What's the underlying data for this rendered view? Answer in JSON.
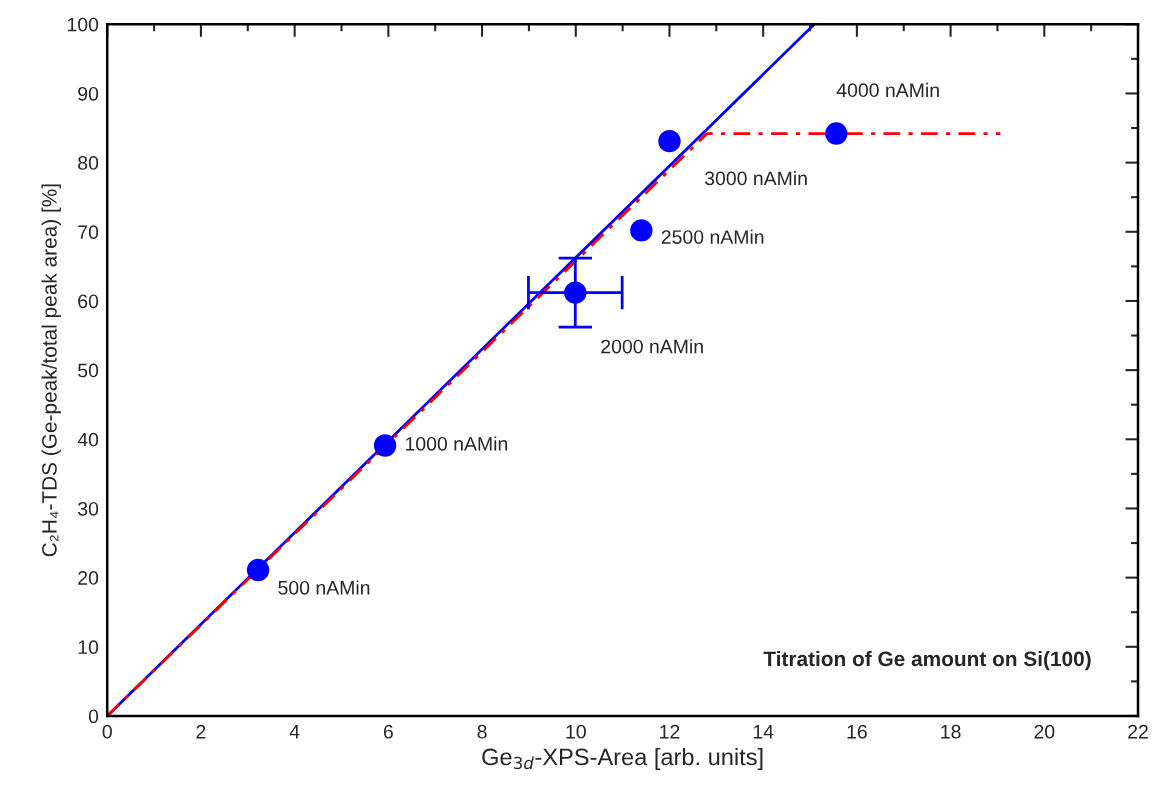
{
  "chart_data": {
    "type": "scatter",
    "xlabel": "Ge$_{3d}$-XPS-Area [arb. units]",
    "ylabel": "C₂H₄-TDS (Ge-peak/total peak area) [%]",
    "xlim": [
      0,
      22
    ],
    "xticks": [
      0,
      2,
      4,
      6,
      8,
      10,
      12,
      14,
      16,
      18,
      20,
      22
    ],
    "ylim": [
      0,
      100
    ],
    "yticks": [
      0,
      10,
      20,
      30,
      40,
      50,
      60,
      70,
      80,
      90,
      100
    ],
    "grid": false,
    "legend": false,
    "series": [
      {
        "type": "line",
        "color": "#0000ff",
        "line_style": "solid",
        "marker": "none",
        "x": [
          0,
          15.09
        ],
        "values": [
          0,
          100
        ]
      },
      {
        "type": "line",
        "color": "#ff0000",
        "line_style": "dashed",
        "marker": "none",
        "x": [
          0,
          12.8,
          19.06
        ],
        "values": [
          0,
          84.2,
          84.2
        ]
      },
      {
        "color": "#0000ff",
        "marker": "circle",
        "x": [
          3.22,
          5.93,
          9.99,
          11.4,
          12.0,
          15.56
        ],
        "values": [
          21.1,
          39.1,
          61.2,
          70.2,
          83.1,
          84.2
        ],
        "errors": [
          null,
          null,
          5,
          null,
          null,
          null
        ],
        "xerrors": [
          null,
          null,
          1,
          null,
          null,
          null
        ]
      }
    ],
    "annotations": [
      {
        "text": "500 nAMin",
        "x": 3.22,
        "y": 21.1
      },
      {
        "text": "1000 nAMin",
        "x": 5.93,
        "y": 39.1
      },
      {
        "text": "2000 nAMin",
        "x": 9.99,
        "y": 61.2
      },
      {
        "text": "2500 nAMin",
        "x": 11.4,
        "y": 70.2
      },
      {
        "text": "3000 nAMin",
        "x": 12.0,
        "y": 83.1
      },
      {
        "text": "4000 nAMin",
        "x": 15.56,
        "y": 84.2
      },
      "Titration of Ge amount on Si(100)"
    ]
  }
}
